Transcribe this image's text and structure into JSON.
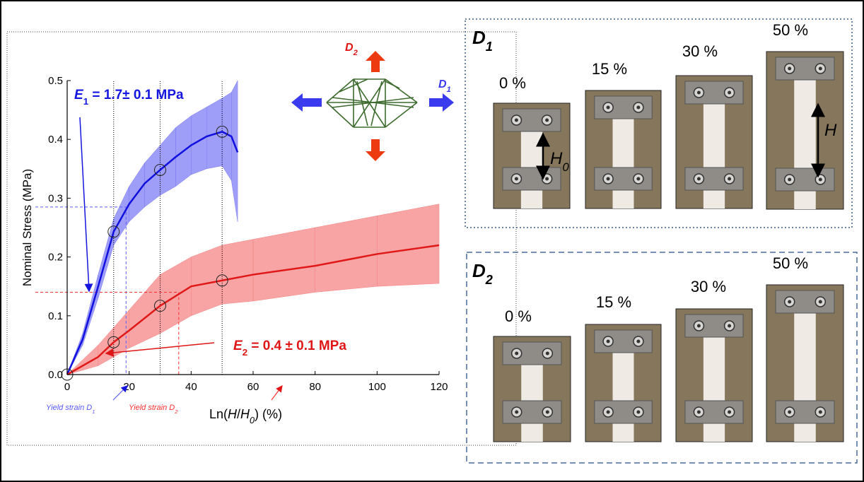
{
  "chart_data": {
    "type": "line",
    "xlabel_parts": [
      "Ln(",
      "H",
      "/",
      "H",
      "0",
      ") (%)"
    ],
    "ylabel": "Nominal Stress (MPa)",
    "xlim": [
      0,
      120
    ],
    "xticks": [
      0,
      20,
      40,
      60,
      80,
      100,
      120
    ],
    "ylim": [
      0,
      0.5
    ],
    "yticks": [
      {
        "value": 0,
        "label": "0.0"
      },
      0.1,
      0.2,
      0.3,
      0.4,
      0.5
    ],
    "series": [
      {
        "color": "#1010e0",
        "band_color": "#7d7df6",
        "x": [
          0,
          5,
          10,
          15,
          20,
          25,
          30,
          35,
          40,
          45,
          50,
          53,
          55
        ],
        "values": [
          0,
          0.06,
          0.15,
          0.243,
          0.29,
          0.325,
          0.348,
          0.37,
          0.39,
          0.405,
          0.413,
          0.405,
          0.378
        ],
        "upper": [
          0,
          0.07,
          0.17,
          0.265,
          0.32,
          0.36,
          0.39,
          0.42,
          0.44,
          0.455,
          0.47,
          0.48,
          0.5
        ],
        "lower": [
          0,
          0.05,
          0.13,
          0.22,
          0.26,
          0.285,
          0.305,
          0.32,
          0.34,
          0.35,
          0.355,
          0.33,
          0.26
        ]
      },
      {
        "color": "#e01818",
        "band_color": "#f58585",
        "x": [
          0,
          10,
          15,
          20,
          30,
          40,
          50,
          60,
          80,
          100,
          120
        ],
        "values": [
          0,
          0.03,
          0.055,
          0.075,
          0.117,
          0.15,
          0.16,
          0.17,
          0.185,
          0.205,
          0.22
        ],
        "upper": [
          0,
          0.05,
          0.08,
          0.11,
          0.17,
          0.2,
          0.22,
          0.23,
          0.25,
          0.27,
          0.29
        ],
        "lower": [
          0,
          0.015,
          0.03,
          0.045,
          0.07,
          0.1,
          0.12,
          0.125,
          0.14,
          0.15,
          0.155
        ]
      }
    ],
    "markers": {
      "x": [
        0,
        15,
        30,
        50,
        15,
        30,
        50
      ],
      "values": [
        0,
        0.243,
        0.348,
        0.413,
        0.055,
        0.117,
        0.16
      ]
    },
    "guide_x": [
      15,
      30,
      50
    ],
    "yield": [
      {
        "x": 19,
        "y": 0.285,
        "color": "#5a5aff",
        "label_parts": [
          "Yield strain ",
          "D",
          "1"
        ]
      },
      {
        "x": 36,
        "y": 0.14,
        "color": "#ff3030",
        "label_parts": [
          "Yield strain ",
          "D",
          "2"
        ]
      }
    ],
    "annotations": [
      {
        "parts": [
          "E",
          "1",
          " = 1.7± 0.1 MPa"
        ],
        "color": "#1515e0"
      },
      {
        "parts": [
          "E",
          "2",
          " = 0.4 ± 0.1 MPa"
        ],
        "color": "#e01515"
      }
    ]
  },
  "diagram": {
    "d1_parts": [
      "D",
      "1"
    ],
    "d2_parts": [
      "D",
      "2"
    ]
  },
  "panels": [
    {
      "title_parts": [
        "D",
        "1"
      ],
      "photos": [
        "0 %",
        "15 %",
        "30 %",
        "50 %"
      ]
    },
    {
      "title_parts": [
        "D",
        "2"
      ],
      "photos": [
        "0 %",
        "15 %",
        "30 %",
        "50 %"
      ]
    }
  ],
  "gauge_labels": {
    "h0_parts": [
      "H",
      "0"
    ],
    "h": "H"
  }
}
